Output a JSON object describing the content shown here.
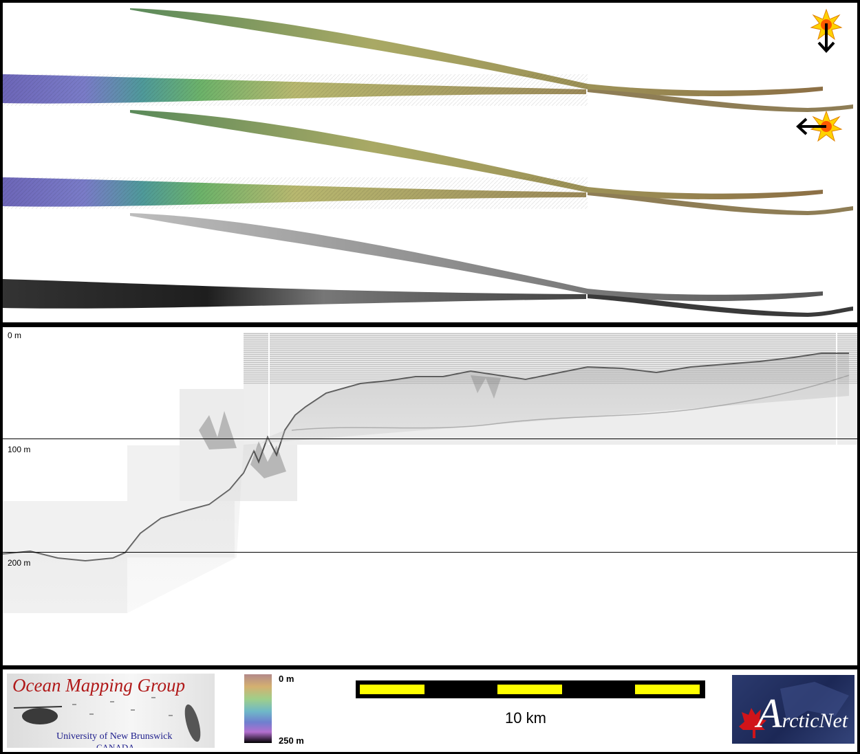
{
  "depth_axis": {
    "labels": [
      "0 m",
      "100 m",
      "200 m"
    ]
  },
  "legend": {
    "colorbar_top": "0 m",
    "colorbar_bottom": "250 m",
    "scale_bar_label": "10 km"
  },
  "logos": {
    "omg_title": "Ocean Mapping Group",
    "omg_line1": "University of New Brunswick",
    "omg_line2": "CANADA",
    "arcticnet_a": "A",
    "arcticnet_rest": "rcticNet"
  },
  "icons": {
    "sun_top": "sun-illumination-icon",
    "arrow_top": "arrow-down-icon",
    "sun_second": "sun-illumination-icon",
    "arrow_second": "arrow-left-icon"
  },
  "colors": {
    "scale_bar_yellow": "#ffff00",
    "colorbar_gradient": [
      "#ff6b6b",
      "#ffd93d",
      "#6bff6b",
      "#3dd9ff",
      "#6b6bff",
      "#ff3dff",
      "#000000"
    ]
  }
}
